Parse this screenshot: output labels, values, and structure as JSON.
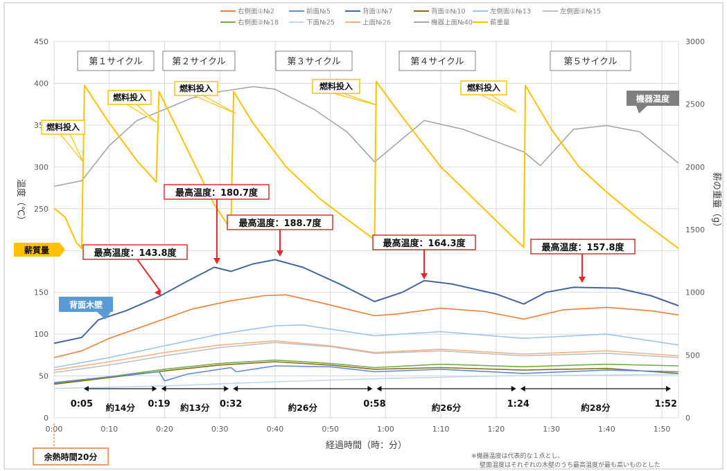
{
  "chart_data": {
    "type": "line",
    "xlabel": "経過時間（時：分）",
    "ylabel": "温度（℃）",
    "y2label": "薪の重量（g）",
    "x_range_min": [
      0,
      113
    ],
    "ylim": [
      0,
      450
    ],
    "y2lim": [
      0,
      3000
    ],
    "grid": true,
    "x_ticks": [
      "0:00",
      "0:10",
      "0:20",
      "0:30",
      "0:40",
      "0:50",
      "1:00",
      "1:10",
      "1:20",
      "1:30",
      "1:40",
      "1:50"
    ],
    "y_ticks": [
      "0",
      "50",
      "100",
      "150",
      "200",
      "250",
      "300",
      "350",
      "400",
      "450"
    ],
    "y2_ticks": [
      "0",
      "500",
      "1000",
      "1500",
      "2000",
      "2500",
      "3000"
    ],
    "legend": [
      {
        "name": "右側面①№2",
        "color": "#ED7D31"
      },
      {
        "name": "前面№5",
        "color": "#5B8BD9"
      },
      {
        "name": "背面①№7",
        "color": "#44659E"
      },
      {
        "name": "背面②№10",
        "color": "#8C6D13"
      },
      {
        "name": "左側面①№13",
        "color": "#9DC3E6"
      },
      {
        "name": "左側面②№15",
        "color": "#BFBFBF"
      },
      {
        "name": "右側面②№18",
        "color": "#70AD47"
      },
      {
        "name": "下面№25",
        "color": "#BDD7EE"
      },
      {
        "name": "上面№26",
        "color": "#F4B183"
      },
      {
        "name": "機器上面№40",
        "color": "#A5A5A5"
      },
      {
        "name": "薪重量",
        "color": "#FFC000"
      }
    ],
    "series": [
      {
        "name": "背面①№7",
        "axis": "left",
        "color": "#44659E",
        "points": [
          [
            0,
            89
          ],
          [
            5,
            96
          ],
          [
            8,
            117
          ],
          [
            13,
            128
          ],
          [
            19,
            145
          ],
          [
            24,
            163
          ],
          [
            29,
            180
          ],
          [
            32,
            175
          ],
          [
            36,
            184
          ],
          [
            40,
            189
          ],
          [
            45,
            180
          ],
          [
            52,
            159
          ],
          [
            58,
            139
          ],
          [
            63,
            150
          ],
          [
            67,
            164
          ],
          [
            72,
            160
          ],
          [
            80,
            148
          ],
          [
            85,
            136
          ],
          [
            89,
            150
          ],
          [
            94,
            156
          ],
          [
            102,
            155
          ],
          [
            108,
            146
          ],
          [
            113,
            134
          ]
        ]
      },
      {
        "name": "右側面①№2",
        "axis": "left",
        "color": "#ED7D31",
        "points": [
          [
            0,
            72
          ],
          [
            5,
            80
          ],
          [
            10,
            95
          ],
          [
            19,
            116
          ],
          [
            25,
            130
          ],
          [
            32,
            140
          ],
          [
            38,
            146
          ],
          [
            42,
            147
          ],
          [
            48,
            138
          ],
          [
            58,
            122
          ],
          [
            62,
            124
          ],
          [
            70,
            131
          ],
          [
            78,
            127
          ],
          [
            85,
            118
          ],
          [
            92,
            129
          ],
          [
            100,
            132
          ],
          [
            108,
            128
          ],
          [
            113,
            123
          ]
        ]
      },
      {
        "name": "左側面①№13",
        "axis": "left",
        "color": "#9DC3E6",
        "points": [
          [
            0,
            60
          ],
          [
            10,
            72
          ],
          [
            20,
            86
          ],
          [
            30,
            100
          ],
          [
            40,
            110
          ],
          [
            45,
            111
          ],
          [
            58,
            98
          ],
          [
            70,
            103
          ],
          [
            85,
            95
          ],
          [
            100,
            100
          ],
          [
            113,
            87
          ]
        ]
      },
      {
        "name": "上面№26",
        "axis": "left",
        "color": "#F4B183",
        "points": [
          [
            0,
            57
          ],
          [
            10,
            67
          ],
          [
            20,
            78
          ],
          [
            30,
            87
          ],
          [
            40,
            92
          ],
          [
            50,
            86
          ],
          [
            58,
            78
          ],
          [
            70,
            82
          ],
          [
            85,
            76
          ],
          [
            100,
            80
          ],
          [
            113,
            74
          ]
        ]
      },
      {
        "name": "左側面②№15",
        "axis": "left",
        "color": "#BFBFBF",
        "points": [
          [
            0,
            54
          ],
          [
            10,
            63
          ],
          [
            20,
            74
          ],
          [
            30,
            84
          ],
          [
            40,
            90
          ],
          [
            50,
            85
          ],
          [
            58,
            77
          ],
          [
            70,
            80
          ],
          [
            85,
            74
          ],
          [
            100,
            77
          ],
          [
            113,
            72
          ]
        ]
      },
      {
        "name": "右側面②№18",
        "axis": "left",
        "color": "#70AD47",
        "points": [
          [
            0,
            41
          ],
          [
            10,
            49
          ],
          [
            20,
            58
          ],
          [
            30,
            65
          ],
          [
            40,
            69
          ],
          [
            50,
            65
          ],
          [
            58,
            60
          ],
          [
            70,
            64
          ],
          [
            85,
            61
          ],
          [
            100,
            64
          ],
          [
            113,
            62
          ]
        ]
      },
      {
        "name": "背面②№10",
        "axis": "left",
        "color": "#8C6D13",
        "points": [
          [
            0,
            40
          ],
          [
            10,
            48
          ],
          [
            20,
            56
          ],
          [
            30,
            63
          ],
          [
            40,
            67
          ],
          [
            50,
            63
          ],
          [
            58,
            58
          ],
          [
            70,
            60
          ],
          [
            85,
            57
          ],
          [
            100,
            59
          ],
          [
            113,
            53
          ]
        ]
      },
      {
        "name": "前面№5",
        "axis": "left",
        "color": "#5B8BD9",
        "points": [
          [
            0,
            42
          ],
          [
            10,
            49
          ],
          [
            19,
            55
          ],
          [
            20,
            44
          ],
          [
            24,
            52
          ],
          [
            32,
            60
          ],
          [
            33,
            55
          ],
          [
            40,
            62
          ],
          [
            50,
            61
          ],
          [
            58,
            55
          ],
          [
            70,
            58
          ],
          [
            85,
            53
          ],
          [
            100,
            57
          ],
          [
            113,
            55
          ]
        ]
      },
      {
        "name": "下面№25",
        "axis": "left",
        "color": "#BDD7EE",
        "points": [
          [
            0,
            35
          ],
          [
            20,
            38
          ],
          [
            40,
            43
          ],
          [
            60,
            47
          ],
          [
            80,
            50
          ],
          [
            100,
            51
          ],
          [
            113,
            52
          ]
        ]
      },
      {
        "name": "機器上面№40",
        "axis": "right",
        "color": "#A5A5A5",
        "points": [
          [
            0,
            1845
          ],
          [
            5,
            1890
          ],
          [
            10,
            2170
          ],
          [
            15,
            2370
          ],
          [
            19,
            2440
          ],
          [
            25,
            2550
          ],
          [
            30,
            2600
          ],
          [
            36,
            2640
          ],
          [
            40,
            2620
          ],
          [
            47,
            2460
          ],
          [
            53,
            2280
          ],
          [
            58,
            2040
          ],
          [
            64,
            2260
          ],
          [
            67,
            2370
          ],
          [
            74,
            2300
          ],
          [
            85,
            2120
          ],
          [
            88,
            2010
          ],
          [
            94,
            2300
          ],
          [
            100,
            2330
          ],
          [
            106,
            2280
          ],
          [
            113,
            2030
          ]
        ]
      },
      {
        "name": "薪重量",
        "axis": "right",
        "color": "#FFC000",
        "points": [
          [
            0,
            1670
          ],
          [
            2,
            1600
          ],
          [
            4,
            1400
          ],
          [
            5,
            1350
          ],
          [
            5.5,
            2650
          ],
          [
            10,
            2350
          ],
          [
            15,
            2050
          ],
          [
            18.5,
            1880
          ],
          [
            19,
            2600
          ],
          [
            24,
            2150
          ],
          [
            29,
            1700
          ],
          [
            32,
            1500
          ],
          [
            32.5,
            2600
          ],
          [
            36,
            2350
          ],
          [
            42,
            2000
          ],
          [
            48,
            1750
          ],
          [
            54,
            1550
          ],
          [
            58,
            1420
          ],
          [
            58.3,
            2680
          ],
          [
            63,
            2400
          ],
          [
            70,
            2000
          ],
          [
            77,
            1700
          ],
          [
            84,
            1400
          ],
          [
            85,
            1360
          ],
          [
            85.3,
            2650
          ],
          [
            90,
            2300
          ],
          [
            95,
            2000
          ],
          [
            100,
            1800
          ],
          [
            106,
            1580
          ],
          [
            113,
            1350
          ]
        ]
      }
    ],
    "cycles": [
      "第１サイクル",
      "第２サイクル",
      "第３サイクル",
      "第４サイクル",
      "第５サイクル"
    ],
    "fuel_label": "燃料投入",
    "max_temps": [
      "最高温度：143.8度",
      "最高温度：180.7度",
      "最高温度：188.7度",
      "最高温度：164.3度",
      "最高温度：157.8度"
    ],
    "segment_times": [
      "0:05",
      "0:19",
      "0:32",
      "0:58",
      "1:24",
      "1:52"
    ],
    "segment_durations": [
      "約14分",
      "約13分",
      "約26分",
      "約26分",
      "約28分"
    ],
    "series_tags": {
      "weight": "薪質量",
      "back_wall": "背面木壁",
      "device": "機器温度"
    },
    "preheat_label": "余熱時間20分",
    "notes": [
      "※機器温度は代表的な１点とし、",
      "壁面温度はそれぞれの木壁のうち最高温度が最も高いものとした"
    ]
  }
}
